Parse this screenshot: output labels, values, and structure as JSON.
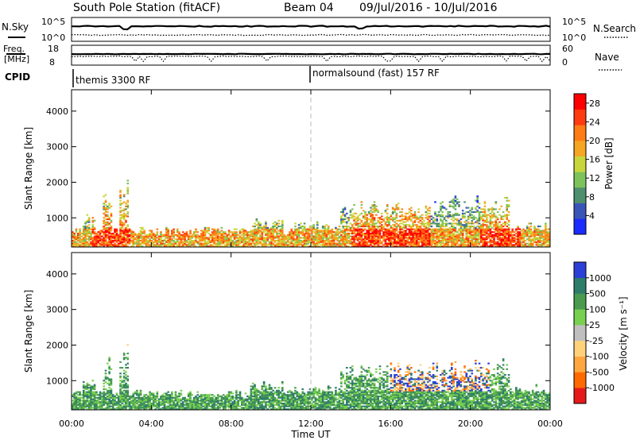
{
  "header": {
    "station": "South Pole Station (fitACF)",
    "beam": "Beam 04",
    "dates": "09/Jul/2016 - 10/Jul/2016"
  },
  "top_panels": {
    "nsky_label": "N.Sky",
    "nsky_ticks": [
      "10^5",
      "10^0"
    ],
    "nsearch_label": "N.Search",
    "nsearch_ticks": [
      "10^5",
      "10^0"
    ],
    "freq_label_1": "Freq.",
    "freq_label_2": "[MHz]",
    "freq_ticks": [
      "18",
      "8"
    ],
    "nave_label": "Nave",
    "nave_ticks": [
      "60",
      "0"
    ],
    "cpid_label": "CPID",
    "cpid_modes": [
      {
        "name": "themis 3300 RF",
        "start_hour": 0
      },
      {
        "name": "normalsound (fast) 157 RF",
        "start_hour": 12
      }
    ]
  },
  "colors": {
    "power": [
      "#1a2cff",
      "#3a55b8",
      "#4e8f6e",
      "#7dc35a",
      "#c8d63a",
      "#f5a623",
      "#ff7b16",
      "#ff3b10",
      "#ff0000"
    ],
    "velocity": [
      "#e61a1a",
      "#ff6a00",
      "#ffa640",
      "#ffd27a",
      "#bfbfbf",
      "#78d050",
      "#4a9a50",
      "#2e7d6b",
      "#2c3fd6"
    ]
  },
  "chart_data": [
    {
      "type": "heatmap",
      "title": "Power",
      "ylabel": "Slant Range [km]",
      "xlabel": "",
      "ylim": [
        180,
        4600
      ],
      "xlim_hours": [
        0,
        24
      ],
      "yticks": [
        1000,
        2000,
        3000,
        4000
      ],
      "xticks": [
        "00:00",
        "04:00",
        "08:00",
        "12:00",
        "16:00",
        "20:00",
        "00:00"
      ],
      "colorbar_label": "Power [dB]",
      "colorbar_ticks": [
        4,
        8,
        12,
        16,
        20,
        24,
        28
      ],
      "colorbar_range": [
        0,
        30
      ],
      "marker_hour": 12
    },
    {
      "type": "heatmap",
      "title": "Velocity",
      "ylabel": "Slant Range [km]",
      "xlabel": "Time UT",
      "ylim": [
        180,
        4600
      ],
      "xlim_hours": [
        0,
        24
      ],
      "yticks": [
        1000,
        2000,
        3000,
        4000
      ],
      "xticks": [
        "00:00",
        "04:00",
        "08:00",
        "12:00",
        "16:00",
        "20:00",
        "00:00"
      ],
      "colorbar_label": "Velocity [m s⁻¹]",
      "colorbar_ticks": [
        "-1000",
        "-500",
        "-100",
        "-25",
        "25",
        "100",
        "500",
        "1000"
      ],
      "marker_hour": 12
    }
  ]
}
